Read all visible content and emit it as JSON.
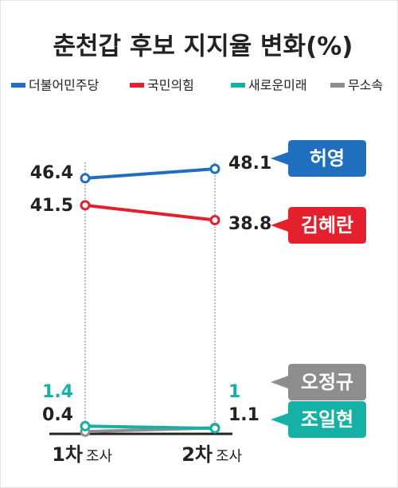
{
  "chart_data": {
    "type": "line",
    "title": "춘천갑 후보 지지율 변화(%)",
    "categories": [
      "1차",
      "2차"
    ],
    "x_suffix": "조사",
    "ylim": [
      0,
      50
    ],
    "series": [
      {
        "name": "더불어민주당",
        "candidate": "허영",
        "color": "#1f6fbe",
        "values": [
          46.4,
          48.1
        ]
      },
      {
        "name": "국민의힘",
        "candidate": "김혜란",
        "color": "#e3202b",
        "values": [
          41.5,
          38.8
        ]
      },
      {
        "name": "새로운미래",
        "candidate": "조일현",
        "color": "#16b1a5",
        "values": [
          1.4,
          1.0
        ]
      },
      {
        "name": "무소속",
        "candidate": "오정규",
        "color": "#8e8e8e",
        "values": [
          0.4,
          1.1
        ]
      }
    ]
  }
}
